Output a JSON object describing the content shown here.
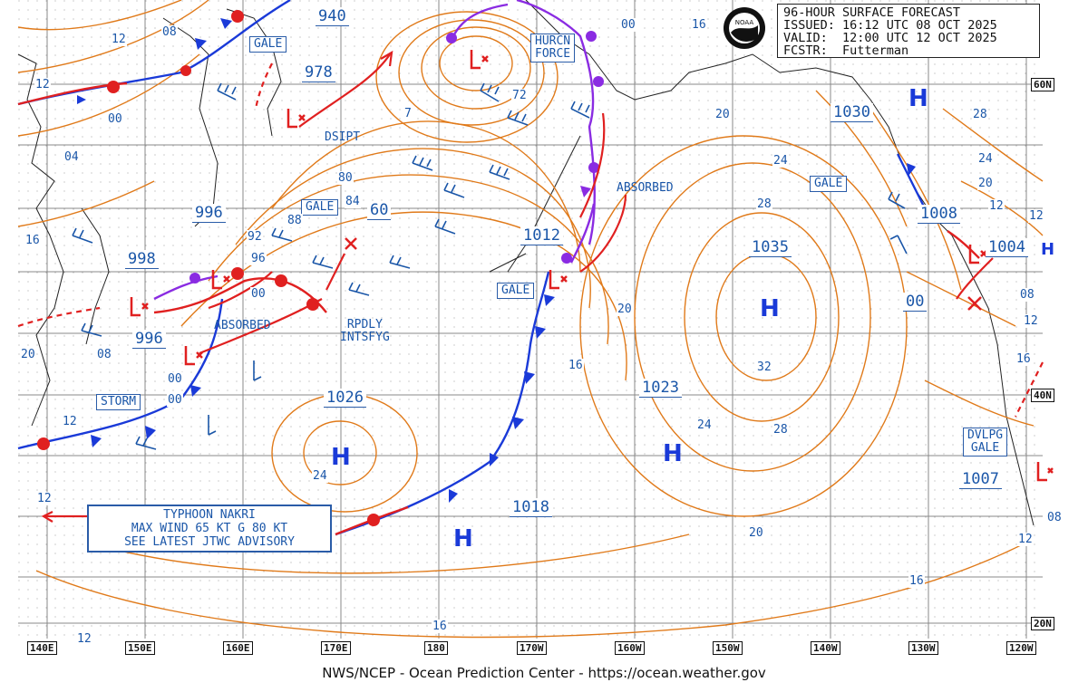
{
  "header": {
    "title": "96-HOUR SURFACE FORECAST",
    "issued": "ISSUED: 16:12 UTC 08 OCT 2025",
    "valid": "VALID:  12:00 UTC 12 OCT 2025",
    "forecaster": "FCSTR:  Futterman"
  },
  "logo": {
    "text": "NOAA"
  },
  "credit": "NWS/NCEP - Ocean Prediction Center - https://ocean.weather.gov",
  "longitudes": [
    "140E",
    "150E",
    "160E",
    "170E",
    "180",
    "170W",
    "160W",
    "150W",
    "140W",
    "130W",
    "120W"
  ],
  "latitudes": [
    "60N",
    "40N",
    "20N"
  ],
  "pressures": [
    "940",
    "978",
    "996",
    "998",
    "996",
    "1026",
    "1012",
    "1035",
    "1023",
    "1030",
    "1008",
    "1004",
    "1007",
    "1018",
    "60",
    "00"
  ],
  "highs": [
    "H",
    "H",
    "H",
    "H",
    "H",
    "H"
  ],
  "boxes": [
    "GALE",
    "GALE",
    "HURCN\nFORCE",
    "GALE",
    "GALE",
    "STORM",
    "DVLPG\nGALE"
  ],
  "annotations": [
    "DSIPT",
    "ABSORBED",
    "ABSORBED",
    "RPDLY\nINTSFYG"
  ],
  "typhoon": [
    "TYPHOON NAKRI",
    "MAX WIND 65 KT G 80 KT",
    "SEE LATEST JTWC ADVISORY"
  ],
  "isobar_labels": [
    "12",
    "08",
    "12",
    "00",
    "04",
    "16",
    "20",
    "08",
    "12",
    "00",
    "00",
    "12",
    "7",
    "72",
    "80",
    "84",
    "88",
    "92",
    "96",
    "00",
    "20",
    "24",
    "16",
    "20",
    "24",
    "28",
    "32",
    "24",
    "28",
    "20",
    "16",
    "16",
    "12",
    "20",
    "24",
    "28",
    "12",
    "08",
    "12",
    "16",
    "00",
    "12",
    "08",
    "12",
    "16"
  ],
  "colors": {
    "isobar": "#e07a1a",
    "cold_front": "#1a3ad8",
    "warm_front": "#e02020",
    "occluded": "#8a2be2",
    "label": "#1a56a8",
    "grid": "#888888"
  }
}
